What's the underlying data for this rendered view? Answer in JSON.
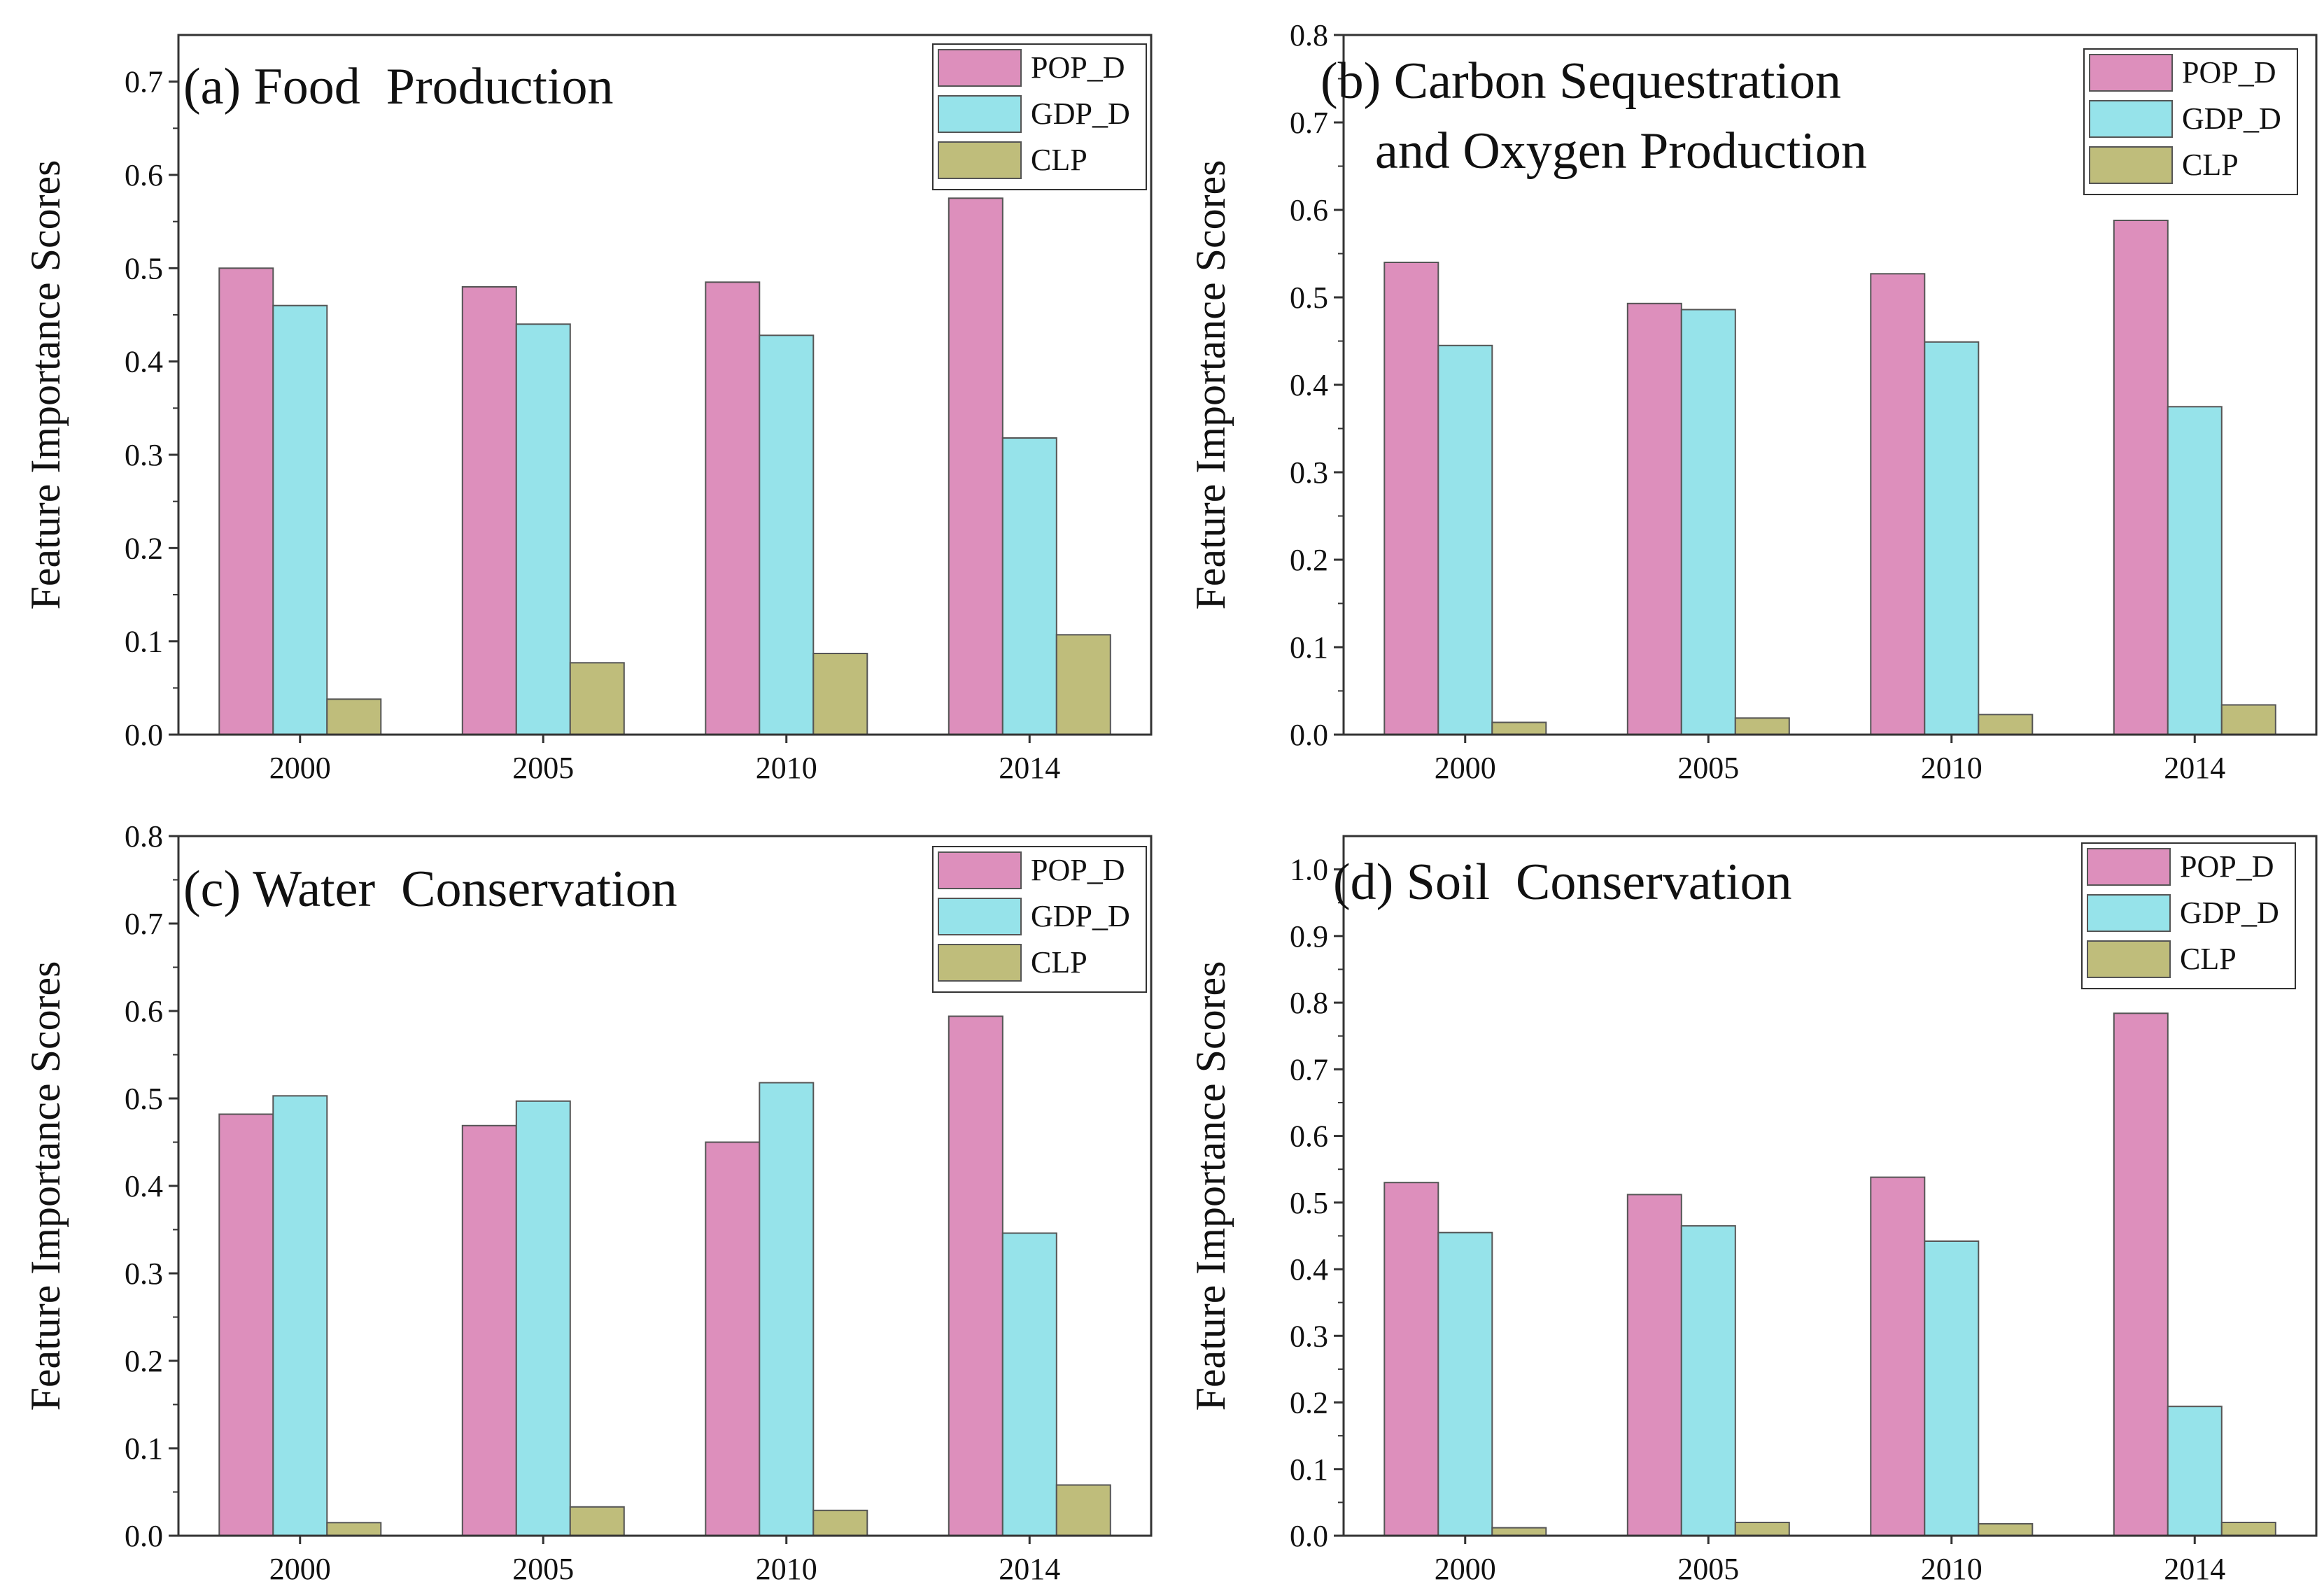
{
  "figure": {
    "chart_data": [
      {
        "type": "bar",
        "title": "(a) Food  Production",
        "title_lines": [
          "(a) Food  Production"
        ],
        "xlabel": "",
        "ylabel": "Feature Importance Scores",
        "ylim": [
          0,
          0.75
        ],
        "yticks": [
          "0.0",
          "0.1",
          "0.2",
          "0.3",
          "0.4",
          "0.5",
          "0.6",
          "0.7"
        ],
        "categories": [
          "2000",
          "2005",
          "2010",
          "2014"
        ],
        "series": [
          {
            "name": "POP_D",
            "values": [
              0.5,
              0.48,
              0.485,
              0.575
            ]
          },
          {
            "name": "GDP_D",
            "values": [
              0.46,
              0.44,
              0.428,
              0.318
            ]
          },
          {
            "name": "CLP",
            "values": [
              0.038,
              0.077,
              0.087,
              0.107
            ]
          }
        ]
      },
      {
        "type": "bar",
        "title": "(b) Carbon Sequestration and Oxygen Production",
        "title_lines": [
          "(b) Carbon Sequestration",
          "and Oxygen Production"
        ],
        "xlabel": "",
        "ylabel": "Feature Importance Scores",
        "ylim": [
          0,
          0.8
        ],
        "yticks": [
          "0.0",
          "0.1",
          "0.2",
          "0.3",
          "0.4",
          "0.5",
          "0.6",
          "0.7",
          "0.8"
        ],
        "categories": [
          "2000",
          "2005",
          "2010",
          "2014"
        ],
        "series": [
          {
            "name": "POP_D",
            "values": [
              0.54,
              0.493,
              0.527,
              0.588
            ]
          },
          {
            "name": "GDP_D",
            "values": [
              0.445,
              0.486,
              0.449,
              0.375
            ]
          },
          {
            "name": "CLP",
            "values": [
              0.014,
              0.019,
              0.023,
              0.034
            ]
          }
        ]
      },
      {
        "type": "bar",
        "title": "(c) Water  Conservation",
        "title_lines": [
          "(c) Water  Conservation"
        ],
        "xlabel": "",
        "ylabel": "Feature Importance Scores",
        "ylim": [
          0,
          0.8
        ],
        "yticks": [
          "0.0",
          "0.1",
          "0.2",
          "0.3",
          "0.4",
          "0.5",
          "0.6",
          "0.7",
          "0.8"
        ],
        "categories": [
          "2000",
          "2005",
          "2010",
          "2014"
        ],
        "series": [
          {
            "name": "POP_D",
            "values": [
              0.482,
              0.469,
              0.45,
              0.594
            ]
          },
          {
            "name": "GDP_D",
            "values": [
              0.503,
              0.497,
              0.518,
              0.346
            ]
          },
          {
            "name": "CLP",
            "values": [
              0.015,
              0.033,
              0.029,
              0.058
            ]
          }
        ]
      },
      {
        "type": "bar",
        "title": "(d) Soil  Conservation",
        "title_lines": [
          "(d) Soil  Conservation"
        ],
        "xlabel": "",
        "ylabel": "Feature Importance Scores",
        "ylim": [
          0,
          1.05
        ],
        "yticks": [
          "0.0",
          "0.1",
          "0.2",
          "0.3",
          "0.4",
          "0.5",
          "0.6",
          "0.7",
          "0.8",
          "0.9",
          "1.0"
        ],
        "categories": [
          "2000",
          "2005",
          "2010",
          "2014"
        ],
        "series": [
          {
            "name": "POP_D",
            "values": [
              0.53,
              0.512,
              0.538,
              0.784
            ]
          },
          {
            "name": "GDP_D",
            "values": [
              0.455,
              0.465,
              0.442,
              0.194
            ]
          },
          {
            "name": "CLP",
            "values": [
              0.012,
              0.02,
              0.018,
              0.02
            ]
          }
        ]
      }
    ],
    "colors": {
      "POP_D": "#dd8fbc",
      "GDP_D": "#96e3ea",
      "CLP": "#bfbd7b",
      "axis": "#333333",
      "bar_edge": "#555555"
    },
    "legend_position": "top-right"
  }
}
